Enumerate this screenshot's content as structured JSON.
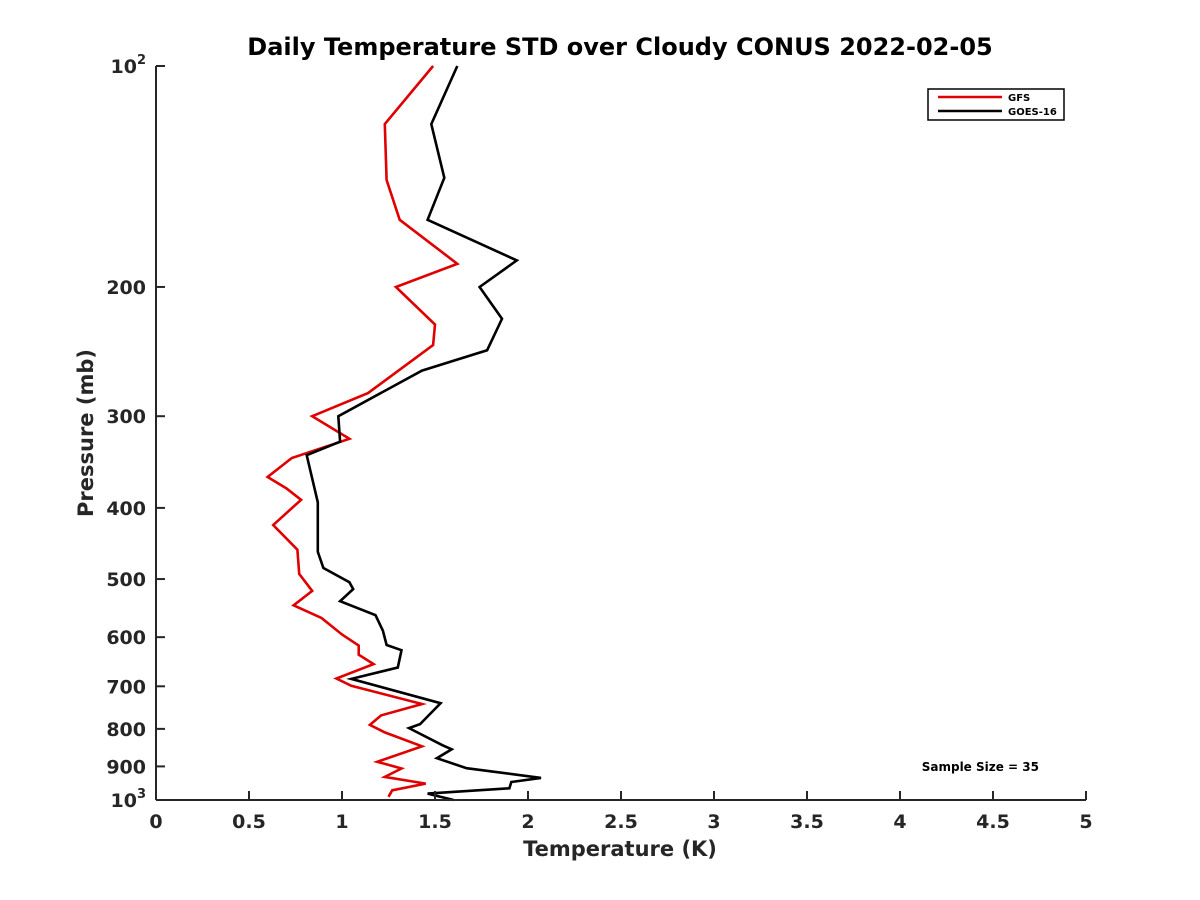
{
  "chart_data": {
    "type": "line",
    "title": "Daily Temperature STD over Cloudy CONUS 2022-02-05",
    "xlabel": "Temperature (K)",
    "ylabel": "Pressure (mb)",
    "xlim": [
      0,
      5
    ],
    "ylim": [
      100,
      1000
    ],
    "y_scale": "log",
    "y_reversed": true,
    "x_ticks": [
      "0",
      "0.5",
      "1",
      "1.5",
      "2",
      "2.5",
      "3",
      "3.5",
      "4",
      "4.5",
      "5"
    ],
    "x_tick_values": [
      0,
      0.5,
      1,
      1.5,
      2,
      2.5,
      3,
      3.5,
      4,
      4.5,
      5
    ],
    "y_ticks": [
      {
        "value": 100,
        "base": "10",
        "exp": "2",
        "text": ""
      },
      {
        "value": 200,
        "text": "200"
      },
      {
        "value": 300,
        "text": "300"
      },
      {
        "value": 400,
        "text": "400"
      },
      {
        "value": 500,
        "text": "500"
      },
      {
        "value": 600,
        "text": "600"
      },
      {
        "value": 700,
        "text": "700"
      },
      {
        "value": 800,
        "text": "800"
      },
      {
        "value": 900,
        "text": "900"
      },
      {
        "value": 1000,
        "base": "10",
        "exp": "3",
        "text": ""
      }
    ],
    "legend_position": "top-right",
    "grid": false,
    "annotation": "Sample Size = 35",
    "series": [
      {
        "name": "GFS",
        "color": "#e00000",
        "points": [
          [
            1.49,
            100
          ],
          [
            1.23,
            120
          ],
          [
            1.24,
            143
          ],
          [
            1.31,
            162
          ],
          [
            1.62,
            186
          ],
          [
            1.29,
            200
          ],
          [
            1.5,
            225
          ],
          [
            1.49,
            240
          ],
          [
            1.14,
            279
          ],
          [
            0.84,
            300
          ],
          [
            1.04,
            322
          ],
          [
            0.73,
            342
          ],
          [
            0.6,
            363
          ],
          [
            0.7,
            376
          ],
          [
            0.78,
            390
          ],
          [
            0.63,
            422
          ],
          [
            0.76,
            456
          ],
          [
            0.77,
            492
          ],
          [
            0.84,
            519
          ],
          [
            0.74,
            543
          ],
          [
            0.89,
            565
          ],
          [
            1.0,
            595
          ],
          [
            1.09,
            616
          ],
          [
            1.09,
            634
          ],
          [
            1.17,
            653
          ],
          [
            0.97,
            683
          ],
          [
            1.05,
            699
          ],
          [
            1.43,
            740
          ],
          [
            1.21,
            767
          ],
          [
            1.15,
            790
          ],
          [
            1.23,
            809
          ],
          [
            1.43,
            845
          ],
          [
            1.19,
            887
          ],
          [
            1.32,
            906
          ],
          [
            1.23,
            930
          ],
          [
            1.45,
            950
          ],
          [
            1.27,
            970
          ],
          [
            1.25,
            990
          ]
        ]
      },
      {
        "name": "GOES-16",
        "color": "#000000",
        "points": [
          [
            1.62,
            100
          ],
          [
            1.48,
            120
          ],
          [
            1.55,
            142
          ],
          [
            1.46,
            162
          ],
          [
            1.94,
            184
          ],
          [
            1.74,
            200
          ],
          [
            1.86,
            221
          ],
          [
            1.78,
            244
          ],
          [
            1.43,
            260
          ],
          [
            0.98,
            300
          ],
          [
            0.99,
            325
          ],
          [
            0.81,
            339
          ],
          [
            0.87,
            393
          ],
          [
            0.87,
            425
          ],
          [
            0.87,
            459
          ],
          [
            0.9,
            483
          ],
          [
            1.04,
            505
          ],
          [
            1.06,
            516
          ],
          [
            0.99,
            536
          ],
          [
            1.18,
            560
          ],
          [
            1.22,
            588
          ],
          [
            1.24,
            615
          ],
          [
            1.32,
            625
          ],
          [
            1.3,
            660
          ],
          [
            1.05,
            684
          ],
          [
            1.53,
            738
          ],
          [
            1.47,
            765
          ],
          [
            1.42,
            788
          ],
          [
            1.36,
            798
          ],
          [
            1.54,
            842
          ],
          [
            1.59,
            853
          ],
          [
            1.51,
            877
          ],
          [
            1.67,
            905
          ],
          [
            2.07,
            933
          ],
          [
            1.91,
            945
          ],
          [
            1.9,
            964
          ],
          [
            1.46,
            980
          ],
          [
            1.6,
            1000
          ]
        ]
      }
    ]
  },
  "legend": {
    "items": [
      {
        "name": "GFS",
        "color": "#e00000"
      },
      {
        "name": "GOES-16",
        "color": "#000000"
      }
    ]
  }
}
